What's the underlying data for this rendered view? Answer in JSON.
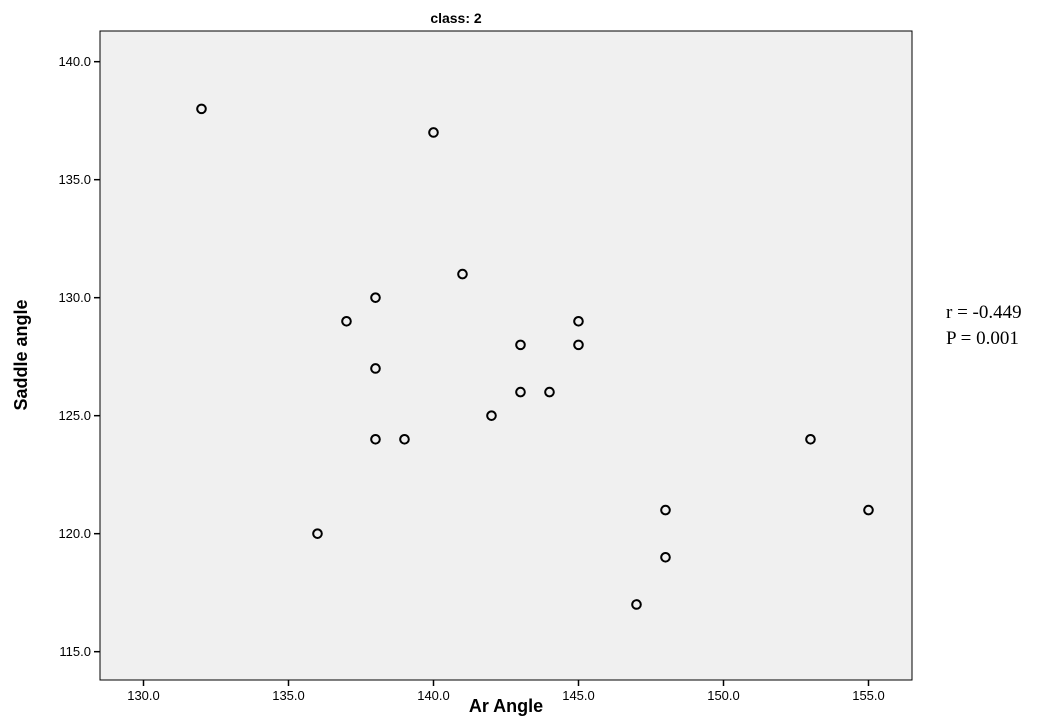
{
  "annotations": {
    "r_text": "r = -0.449",
    "p_text": "P = 0.001"
  },
  "chart_data": {
    "type": "scatter",
    "title": "class: 2",
    "xlabel": "Ar Angle",
    "ylabel": "Saddle angle",
    "xlim": [
      128.5,
      156.5
    ],
    "ylim": [
      113.8,
      141.3
    ],
    "xticks": [
      130,
      135,
      140,
      145,
      150,
      155
    ],
    "yticks": [
      115,
      120,
      125,
      130,
      135,
      140
    ],
    "xtick_labels": [
      "130.0",
      "135.0",
      "140.0",
      "145.0",
      "150.0",
      "155.0"
    ],
    "ytick_labels": [
      "115.0",
      "120.0",
      "125.0",
      "130.0",
      "135.0",
      "140.0"
    ],
    "grid": false,
    "background_color": "#f0f0f0",
    "marker_color": "#000000",
    "points": [
      {
        "x": 132,
        "y": 138
      },
      {
        "x": 140,
        "y": 137
      },
      {
        "x": 141,
        "y": 131
      },
      {
        "x": 138,
        "y": 130
      },
      {
        "x": 137,
        "y": 129
      },
      {
        "x": 145,
        "y": 129
      },
      {
        "x": 143,
        "y": 128
      },
      {
        "x": 145,
        "y": 128
      },
      {
        "x": 138,
        "y": 127
      },
      {
        "x": 143,
        "y": 126
      },
      {
        "x": 144,
        "y": 126
      },
      {
        "x": 142,
        "y": 125
      },
      {
        "x": 138,
        "y": 124
      },
      {
        "x": 139,
        "y": 124
      },
      {
        "x": 153,
        "y": 124
      },
      {
        "x": 148,
        "y": 121
      },
      {
        "x": 155,
        "y": 121
      },
      {
        "x": 136,
        "y": 120
      },
      {
        "x": 148,
        "y": 119
      },
      {
        "x": 147,
        "y": 117
      }
    ]
  }
}
